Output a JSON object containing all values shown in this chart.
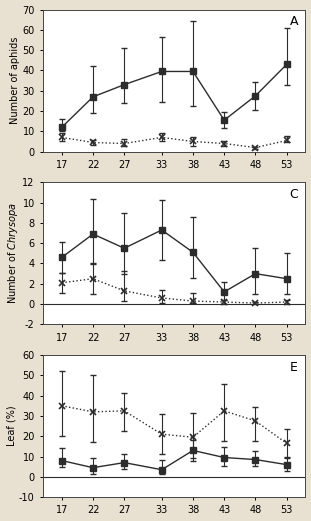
{
  "x": [
    17,
    22,
    27,
    33,
    38,
    43,
    48,
    53
  ],
  "panel_A": {
    "label": "A",
    "ylabel": "Number of aphids",
    "ylabel_italic": false,
    "ylim": [
      0,
      70
    ],
    "yticks": [
      0,
      10,
      20,
      30,
      40,
      50,
      60,
      70
    ],
    "solid_y": [
      12,
      27,
      33,
      39.5,
      39.5,
      15.5,
      27.5,
      43
    ],
    "solid_yerr_lo": [
      2,
      8,
      9,
      15,
      17,
      4,
      7,
      10
    ],
    "solid_yerr_hi": [
      4,
      15,
      18,
      17,
      25,
      4,
      7,
      18
    ],
    "dotted_y": [
      7,
      4.5,
      4,
      7,
      5,
      4,
      2,
      5.5
    ],
    "dotted_yerr_lo": [
      2,
      1,
      1,
      2,
      2,
      1,
      0.5,
      1
    ],
    "dotted_yerr_hi": [
      2,
      1,
      2,
      2,
      2,
      1,
      0.5,
      2
    ],
    "hline_zero": false
  },
  "panel_C": {
    "label": "C",
    "ylabel": "Number of Chrysopa",
    "ylabel_italic": true,
    "ylim": [
      -2,
      12
    ],
    "yticks": [
      -2,
      0,
      2,
      4,
      6,
      8,
      10,
      12
    ],
    "solid_y": [
      4.6,
      6.9,
      5.5,
      7.3,
      5.1,
      1.2,
      3.0,
      2.5
    ],
    "solid_yerr_lo": [
      1.5,
      3.0,
      2.5,
      3.0,
      2.5,
      0.8,
      2.0,
      1.5
    ],
    "solid_yerr_hi": [
      1.5,
      3.5,
      3.5,
      3.0,
      3.5,
      1.0,
      2.5,
      2.5
    ],
    "dotted_y": [
      2.1,
      2.5,
      1.3,
      0.6,
      0.3,
      0.2,
      0.1,
      0.2
    ],
    "dotted_yerr_lo": [
      1.0,
      1.5,
      1.0,
      0.5,
      0.2,
      0.2,
      0.1,
      0.2
    ],
    "dotted_yerr_hi": [
      1.0,
      1.5,
      2.0,
      0.8,
      0.8,
      0.2,
      0.1,
      0.2
    ],
    "hline_zero": true
  },
  "panel_E": {
    "label": "E",
    "ylabel": "Leaf (%)",
    "ylabel_italic": false,
    "ylim": [
      -10,
      60
    ],
    "yticks": [
      -10,
      0,
      10,
      20,
      30,
      40,
      50,
      60
    ],
    "solid_y": [
      8,
      4.5,
      7,
      3.5,
      13,
      9.5,
      8.5,
      6
    ],
    "solid_yerr_lo": [
      3,
      3,
      3,
      2,
      5,
      4,
      3,
      3
    ],
    "solid_yerr_hi": [
      6,
      5,
      4,
      5,
      5,
      5,
      4,
      4
    ],
    "dotted_y": [
      35,
      32,
      32.5,
      21,
      19.5,
      32.5,
      27.5,
      16.5
    ],
    "dotted_yerr_lo": [
      15,
      15,
      10,
      10,
      10,
      15,
      10,
      7
    ],
    "dotted_yerr_hi": [
      17,
      18,
      9,
      10,
      12,
      13,
      7,
      7
    ],
    "hline_zero": true
  },
  "bg_color": "#ffffff",
  "fig_bg_color": "#e8e0d0",
  "line_color": "#2c2c2c",
  "marker_solid": "s",
  "marker_dotted": "x",
  "markersize_solid": 4,
  "markersize_dotted": 5,
  "linewidth": 1.0,
  "capsize": 2,
  "elinewidth": 0.8,
  "xlim": [
    14,
    56
  ]
}
